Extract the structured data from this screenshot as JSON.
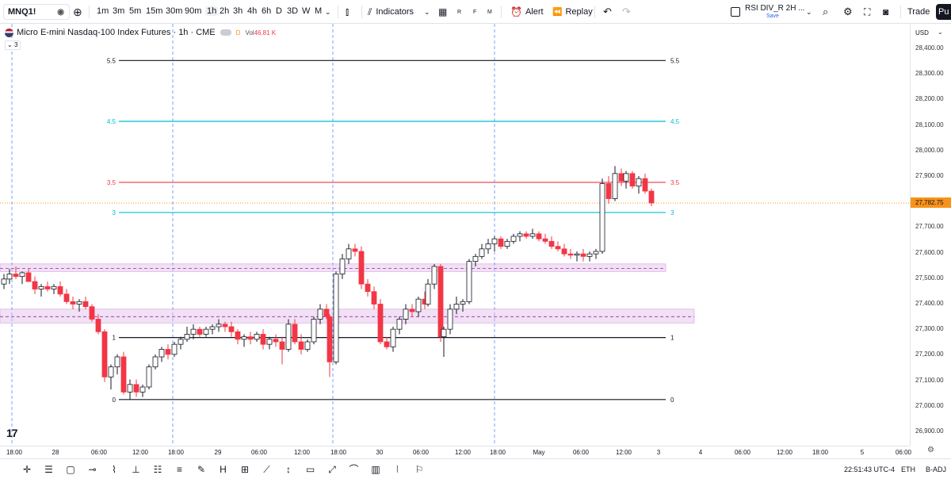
{
  "toolbar": {
    "symbol": "MNQ1!",
    "timeframes": [
      "1m",
      "3m",
      "5m",
      "15m",
      "30m",
      "90m",
      "1h",
      "2h",
      "3h",
      "4h",
      "6h",
      "D",
      "3D",
      "W",
      "M"
    ],
    "active_timeframe": "1h",
    "indicators_label": "Indicators",
    "layout_letters": [
      "R",
      "F",
      "M"
    ],
    "alert_label": "Alert",
    "replay_label": "Replay",
    "layout_name": "RSI DIV_R 2H ...",
    "save_label": "Save",
    "trade_label": "Trade",
    "publish_label": "Pu"
  },
  "legend": {
    "title": "Micro E-mini Nasdaq-100 Index Futures · 1h · CME",
    "badge": "D",
    "vol_label": "Vol",
    "vol_value": "46.81 K",
    "collapse_count": "3"
  },
  "price_axis": {
    "currency": "USD",
    "labels": [
      "28,400.00",
      "28,300.00",
      "28,200.00",
      "28,100.00",
      "28,000.00",
      "27,900.00",
      "27,800.00",
      "27,700.00",
      "27,600.00",
      "27,500.00",
      "27,400.00",
      "27,300.00",
      "27,200.00",
      "27,100.00",
      "27,000.00",
      "26,900.00"
    ],
    "last_price": "27,782.75"
  },
  "time_axis": {
    "labels": [
      "18:00",
      "28",
      "06:00",
      "12:00",
      "18:00",
      "29",
      "06:00",
      "12:00",
      "18:00",
      "30",
      "06:00",
      "12:00",
      "18:00",
      "May",
      "06:00",
      "12:00",
      "3",
      "4",
      "06:00",
      "12:00",
      "18:00",
      "5",
      "06:00"
    ]
  },
  "fib_levels": [
    {
      "label": "5.5",
      "color": "#131722"
    },
    {
      "label": "4.5",
      "color": "#00bcd4"
    },
    {
      "label": "3.5",
      "color": "#f23645"
    },
    {
      "label": "3",
      "color": "#00bcd4"
    },
    {
      "label": "1",
      "color": "#131722"
    },
    {
      "label": "0",
      "color": "#131722"
    }
  ],
  "colors": {
    "up": "#ffffff",
    "down": "#f23645",
    "wick": "#131722",
    "zone": "#9c27b0"
  },
  "status": {
    "clock": "22:51:43 UTC-4",
    "session": "ETH",
    "adjust": "B-ADJ"
  },
  "drawing_tools": [
    "crosshair-icon",
    "trend-lines-icon",
    "rectangle-icon",
    "horizontal-ray-icon",
    "path-icon",
    "fib-icon",
    "pitchfork-icon",
    "brush-icon",
    "measure-icon",
    "long-position-icon",
    "magnet-icon",
    "text-icon",
    "arrow-icon",
    "pattern-icon",
    "bars-pattern-icon",
    "flag-icon",
    "icon-shapes-icon",
    "anchored-vwap-icon",
    "regression-icon"
  ]
}
